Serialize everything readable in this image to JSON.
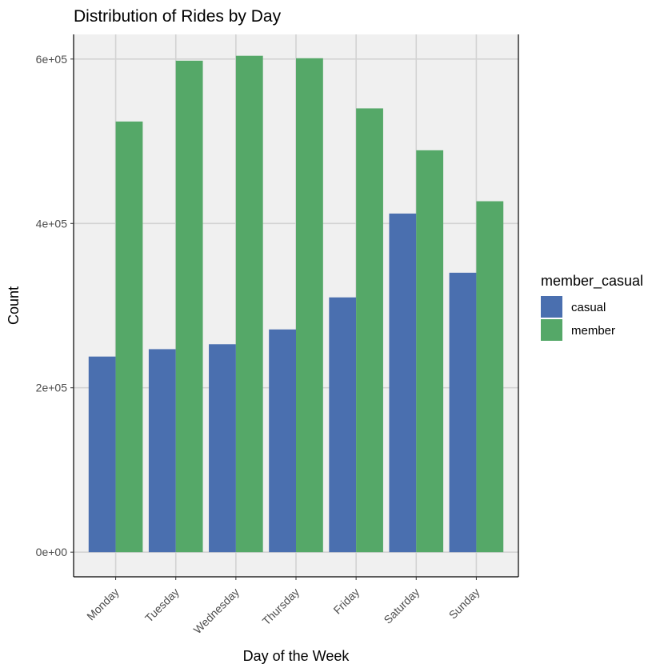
{
  "chart_data": {
    "type": "bar",
    "title": "Distribution of Rides by Day",
    "xlabel": "Day of the Week",
    "ylabel": "Count",
    "categories": [
      "Monday",
      "Tuesday",
      "Wednesday",
      "Thursday",
      "Friday",
      "Saturday",
      "Sunday"
    ],
    "series": [
      {
        "name": "casual",
        "color": "#4a6faf",
        "values": [
          238000,
          247000,
          253000,
          271000,
          310000,
          412000,
          340000
        ]
      },
      {
        "name": "member",
        "color": "#55a868",
        "values": [
          524000,
          598000,
          604000,
          601000,
          540000,
          489000,
          427000
        ]
      }
    ],
    "ylim": [
      -30000,
      630000
    ],
    "yticks": [
      0,
      200000,
      400000,
      600000
    ],
    "ytick_labels": [
      "0e+00",
      "2e+05",
      "4e+05",
      "6e+05"
    ],
    "legend": {
      "title": "member_casual",
      "position": "right"
    },
    "grid": true,
    "panel_background": "#f0f0f0",
    "grid_color": "#d3d3d3"
  }
}
